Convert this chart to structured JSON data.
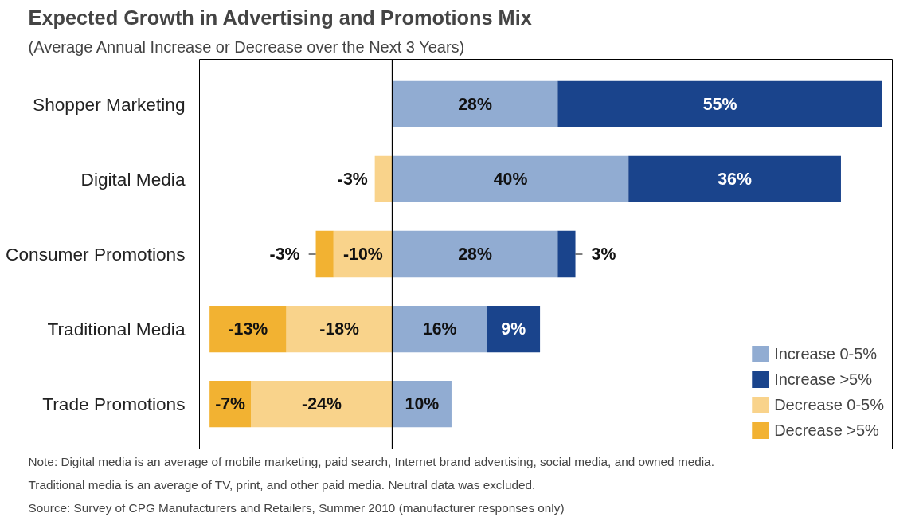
{
  "chart_data": {
    "type": "bar",
    "orientation": "horizontal",
    "stacked": true,
    "title": "Expected Growth in Advertising and Promotions Mix",
    "subtitle": "(Average Annual Increase or Decrease over the Next 3 Years)",
    "categories": [
      "Shopper Marketing",
      "Digital Media",
      "Consumer Promotions",
      "Traditional Media",
      "Trade Promotions"
    ],
    "series": [
      {
        "name": "Increase 0-5%",
        "color": "#91acd2",
        "values": [
          28,
          40,
          28,
          16,
          10
        ],
        "value_labels": [
          "28%",
          "40%",
          "28%",
          "16%",
          "10%"
        ]
      },
      {
        "name": "Increase >5%",
        "color": "#1a448c",
        "values": [
          55,
          36,
          3,
          9,
          null
        ],
        "value_labels": [
          "55%",
          "36%",
          "3%",
          "9%",
          null
        ]
      },
      {
        "name": "Decrease 0-5%",
        "color": "#f9d38b",
        "values": [
          null,
          -3,
          -10,
          -18,
          -24
        ],
        "value_labels": [
          null,
          "-3%",
          "-10%",
          "-18%",
          "-24%"
        ]
      },
      {
        "name": "Decrease >5%",
        "color": "#f2b232",
        "values": [
          null,
          null,
          -3,
          -13,
          -7
        ],
        "value_labels": [
          null,
          null,
          "-3%",
          "-13%",
          "-7%"
        ]
      }
    ],
    "tick_labels": "y",
    "grid": false,
    "legend": "bottom right",
    "annotations": [
      "Note: Digital media is an average of mobile marketing, paid search, Internet brand advertising, social media, and owned media.",
      "Traditional media is an average of TV, print, and other paid media. Neutral data was excluded.",
      "Source: Survey of CPG Manufacturers and Retailers, Summer 2010 (manufacturer responses only)"
    ]
  }
}
